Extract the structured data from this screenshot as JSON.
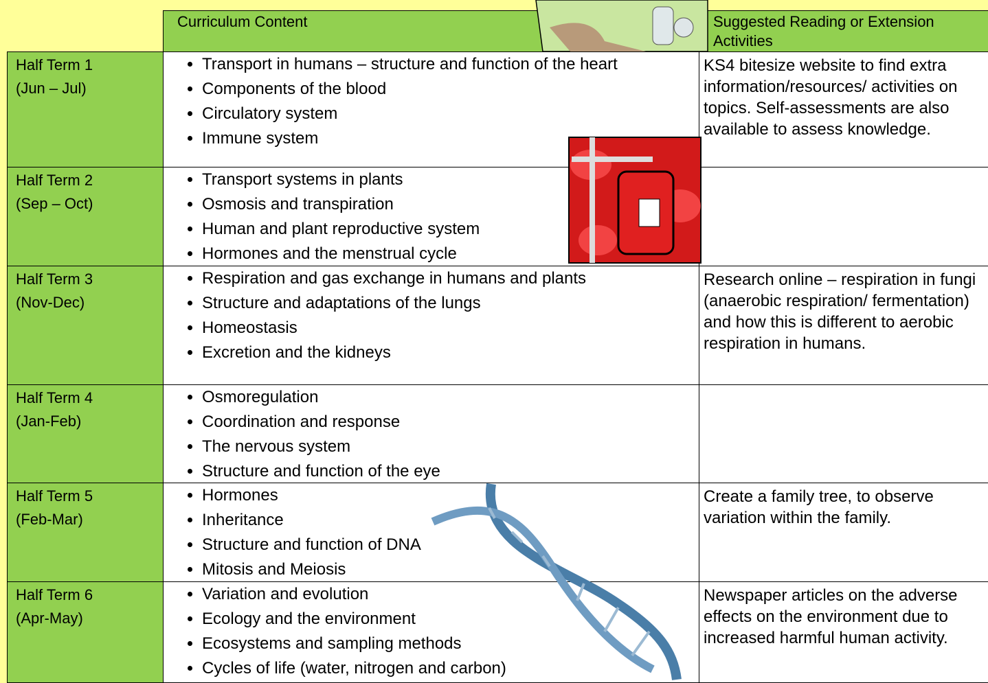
{
  "header": {
    "content": "Curriculum Content",
    "reading": "Suggested Reading or Extension Activities"
  },
  "rows": [
    {
      "term": "Half Term 1",
      "dates": "(Jun – Jul)",
      "topics": [
        "Transport in humans – structure and function of the heart",
        "Components of the blood",
        "Circulatory system",
        "Immune system"
      ],
      "reading": "KS4 bitesize website to find extra information/resources/ activities on topics. Self-assessments are also available to assess knowledge."
    },
    {
      "term": "Half Term 2",
      "dates": "(Sep – Oct)",
      "topics": [
        "Transport systems in plants",
        "Osmosis and transpiration",
        "Human and plant reproductive system",
        "Hormones and the menstrual cycle"
      ]
    },
    {
      "term": "Half Term 3",
      "dates": "(Nov-Dec)",
      "topics": [
        "Respiration and gas exchange in humans and plants",
        "Structure and adaptations of the lungs",
        "Homeostasis",
        "Excretion and the kidneys"
      ],
      "reading": "Research online – respiration in fungi (anaerobic respiration/ fermentation) and how this is different to aerobic respiration in humans."
    },
    {
      "term": "Half Term 4",
      "dates": "(Jan-Feb)",
      "topics": [
        "Osmoregulation",
        "Coordination and response",
        "The nervous system",
        "Structure and function of the eye"
      ]
    },
    {
      "term": "Half Term 5",
      "dates": "(Feb-Mar)",
      "topics": [
        "Hormones",
        "Inheritance",
        "Structure and function of DNA",
        "Mitosis and Meiosis"
      ],
      "reading": "Create a family tree, to observe variation within the family."
    },
    {
      "term": "Half Term 6",
      "dates": "(Apr-May)",
      "topics": [
        "Variation and evolution",
        "Ecology and the environment",
        "Ecosystems and sampling methods",
        "Cycles of life (water, nitrogen and carbon)"
      ],
      "reading": "Newspaper articles on the adverse effects on the environment due to increased harmful human activity."
    }
  ]
}
